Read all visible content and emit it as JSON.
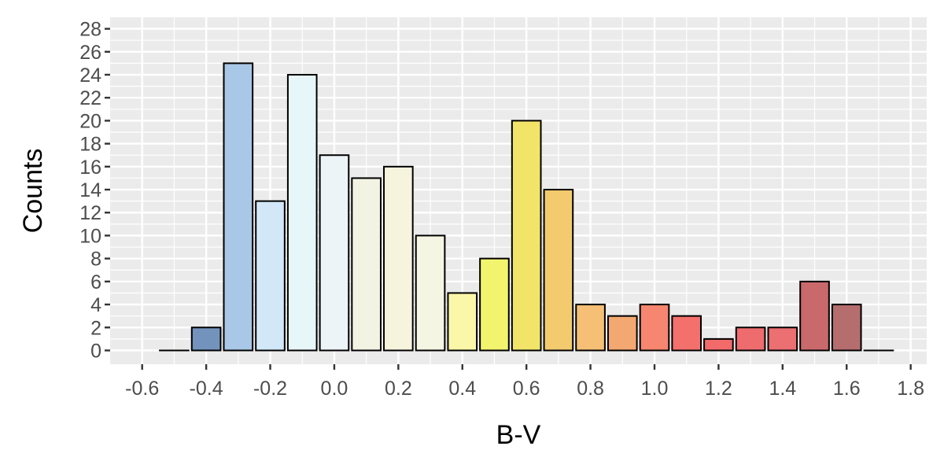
{
  "chart_data": {
    "type": "bar",
    "title": "",
    "xlabel": "B-V",
    "ylabel": "Counts",
    "x": [
      -0.5,
      -0.4,
      -0.3,
      -0.2,
      -0.1,
      0.0,
      0.1,
      0.2,
      0.3,
      0.4,
      0.5,
      0.6,
      0.7,
      0.8,
      0.9,
      1.0,
      1.1,
      1.2,
      1.3,
      1.4,
      1.5,
      1.6,
      1.7
    ],
    "values": [
      0,
      2,
      25,
      13,
      24,
      17,
      15,
      16,
      10,
      5,
      8,
      20,
      14,
      4,
      3,
      4,
      3,
      1,
      2,
      2,
      6,
      4,
      0
    ],
    "bar_colors": [
      "#4c6f9f",
      "#7393bd",
      "#a9c7e7",
      "#d2e8f8",
      "#e7f6f9",
      "#edf4f8",
      "#f3f3e3",
      "#f7f4de",
      "#f5f5e3",
      "#faf7a9",
      "#f3f46e",
      "#f1e469",
      "#f3cb6e",
      "#f5bf76",
      "#f3a871",
      "#f6866f",
      "#f4706c",
      "#f26a6a",
      "#ee6c6e",
      "#ec6f71",
      "#c9696b",
      "#b56d6d",
      "#8c6868"
    ],
    "xlim": [
      -0.7,
      1.85
    ],
    "ylim": [
      -1.2,
      29
    ],
    "x_ticks": [
      -0.6,
      -0.4,
      -0.2,
      0.0,
      0.2,
      0.4,
      0.6,
      0.8,
      1.0,
      1.2,
      1.4,
      1.6,
      1.8
    ],
    "x_tick_labels": [
      "-0.6",
      "-0.4",
      "-0.2",
      "0.0",
      "0.2",
      "0.4",
      "0.6",
      "0.8",
      "1.0",
      "1.2",
      "1.4",
      "1.6",
      "1.8"
    ],
    "y_ticks": [
      0,
      2,
      4,
      6,
      8,
      10,
      12,
      14,
      16,
      18,
      20,
      22,
      24,
      26,
      28
    ],
    "y_tick_labels": [
      "0",
      "2",
      "4",
      "6",
      "8",
      "10",
      "12",
      "14",
      "16",
      "18",
      "20",
      "22",
      "24",
      "26",
      "28"
    ],
    "grid": true,
    "panel_background": "#ebebeb",
    "grid_color": "#ffffff",
    "bar_outline": "#000000"
  }
}
